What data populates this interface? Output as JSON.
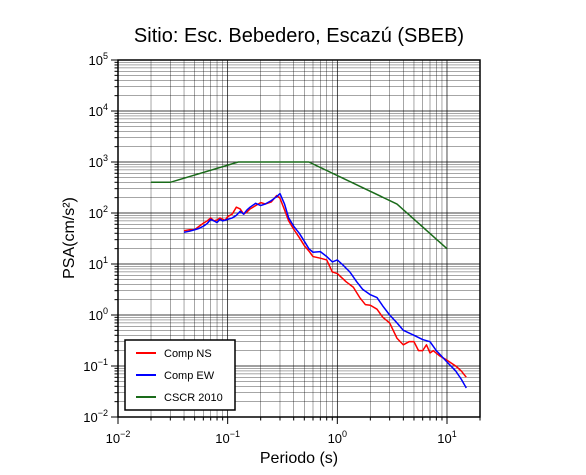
{
  "chart_data": {
    "type": "line",
    "title": "Sitio: Esc. Bebedero, Escazú (SBEB)",
    "xlabel": "Periodo (s)",
    "ylabel": "PSA(cm/s²)",
    "xscale": "log",
    "yscale": "log",
    "xlim": [
      0.01,
      20
    ],
    "ylim": [
      0.01,
      100000
    ],
    "grid": true,
    "legend_position": "bottom-left",
    "x_ticks": [
      {
        "value": 0.01,
        "base": "10",
        "exp": "−2"
      },
      {
        "value": 0.1,
        "base": "10",
        "exp": "−1"
      },
      {
        "value": 1,
        "base": "10",
        "exp": "0"
      },
      {
        "value": 10,
        "base": "10",
        "exp": "1"
      }
    ],
    "y_ticks": [
      {
        "value": 0.01,
        "base": "10",
        "exp": "−2"
      },
      {
        "value": 0.1,
        "base": "10",
        "exp": "−1"
      },
      {
        "value": 1,
        "base": "10",
        "exp": "0"
      },
      {
        "value": 10,
        "base": "10",
        "exp": "1"
      },
      {
        "value": 100,
        "base": "10",
        "exp": "2"
      },
      {
        "value": 1000,
        "base": "10",
        "exp": "3"
      },
      {
        "value": 10000,
        "base": "10",
        "exp": "4"
      },
      {
        "value": 100000,
        "base": "10",
        "exp": "5"
      }
    ],
    "series": [
      {
        "name": "Comp NS",
        "color": "#ff0000",
        "points": [
          [
            0.04,
            45
          ],
          [
            0.045,
            47
          ],
          [
            0.05,
            47
          ],
          [
            0.055,
            55
          ],
          [
            0.06,
            63
          ],
          [
            0.065,
            70
          ],
          [
            0.07,
            80
          ],
          [
            0.075,
            70
          ],
          [
            0.08,
            73
          ],
          [
            0.085,
            80
          ],
          [
            0.09,
            75
          ],
          [
            0.095,
            72
          ],
          [
            0.1,
            85
          ],
          [
            0.11,
            95
          ],
          [
            0.12,
            130
          ],
          [
            0.13,
            120
          ],
          [
            0.14,
            95
          ],
          [
            0.15,
            105
          ],
          [
            0.16,
            120
          ],
          [
            0.18,
            140
          ],
          [
            0.2,
            160
          ],
          [
            0.22,
            150
          ],
          [
            0.25,
            165
          ],
          [
            0.28,
            220
          ],
          [
            0.3,
            195
          ],
          [
            0.33,
            115
          ],
          [
            0.36,
            70
          ],
          [
            0.4,
            48
          ],
          [
            0.45,
            33
          ],
          [
            0.5,
            23
          ],
          [
            0.55,
            18
          ],
          [
            0.6,
            14
          ],
          [
            0.7,
            13
          ],
          [
            0.8,
            12
          ],
          [
            0.9,
            7
          ],
          [
            1.0,
            6.5
          ],
          [
            1.2,
            4.5
          ],
          [
            1.4,
            3.5
          ],
          [
            1.6,
            2.2
          ],
          [
            1.8,
            1.6
          ],
          [
            2.0,
            1.55
          ],
          [
            2.3,
            1.3
          ],
          [
            2.6,
            0.9
          ],
          [
            3.0,
            0.7
          ],
          [
            3.5,
            0.35
          ],
          [
            4.0,
            0.26
          ],
          [
            4.5,
            0.3
          ],
          [
            5.0,
            0.3
          ],
          [
            5.5,
            0.2
          ],
          [
            6.0,
            0.2
          ],
          [
            6.5,
            0.26
          ],
          [
            7.0,
            0.18
          ],
          [
            7.5,
            0.2
          ],
          [
            8.5,
            0.16
          ],
          [
            10,
            0.13
          ],
          [
            12,
            0.1
          ],
          [
            13.5,
            0.08
          ],
          [
            15,
            0.06
          ]
        ]
      },
      {
        "name": "Comp EW",
        "color": "#0000ff",
        "points": [
          [
            0.04,
            42
          ],
          [
            0.045,
            44
          ],
          [
            0.05,
            47
          ],
          [
            0.055,
            50
          ],
          [
            0.06,
            55
          ],
          [
            0.065,
            62
          ],
          [
            0.07,
            75
          ],
          [
            0.075,
            70
          ],
          [
            0.08,
            65
          ],
          [
            0.085,
            75
          ],
          [
            0.09,
            70
          ],
          [
            0.1,
            75
          ],
          [
            0.11,
            80
          ],
          [
            0.12,
            90
          ],
          [
            0.13,
            108
          ],
          [
            0.14,
            95
          ],
          [
            0.15,
            115
          ],
          [
            0.16,
            130
          ],
          [
            0.18,
            155
          ],
          [
            0.2,
            140
          ],
          [
            0.22,
            150
          ],
          [
            0.25,
            175
          ],
          [
            0.28,
            210
          ],
          [
            0.3,
            240
          ],
          [
            0.33,
            150
          ],
          [
            0.36,
            80
          ],
          [
            0.4,
            55
          ],
          [
            0.45,
            40
          ],
          [
            0.5,
            28
          ],
          [
            0.55,
            20
          ],
          [
            0.6,
            17
          ],
          [
            0.7,
            17.5
          ],
          [
            0.8,
            14
          ],
          [
            0.9,
            11
          ],
          [
            1.0,
            12
          ],
          [
            1.1,
            10
          ],
          [
            1.3,
            7
          ],
          [
            1.5,
            4.5
          ],
          [
            1.7,
            3.2
          ],
          [
            2.0,
            2.5
          ],
          [
            2.3,
            2.2
          ],
          [
            2.6,
            1.5
          ],
          [
            3.0,
            1.0
          ],
          [
            3.5,
            0.7
          ],
          [
            4.0,
            0.5
          ],
          [
            5.0,
            0.4
          ],
          [
            6.0,
            0.33
          ],
          [
            7.0,
            0.3
          ],
          [
            8.0,
            0.2
          ],
          [
            10,
            0.12
          ],
          [
            12,
            0.08
          ],
          [
            13.5,
            0.055
          ],
          [
            15,
            0.037
          ]
        ]
      },
      {
        "name": "CSCR 2010",
        "color": "#1a6b1a",
        "points": [
          [
            0.02,
            400
          ],
          [
            0.03,
            400
          ],
          [
            0.125,
            1000
          ],
          [
            0.55,
            1000
          ],
          [
            3.5,
            150
          ],
          [
            10,
            20
          ]
        ]
      }
    ]
  }
}
